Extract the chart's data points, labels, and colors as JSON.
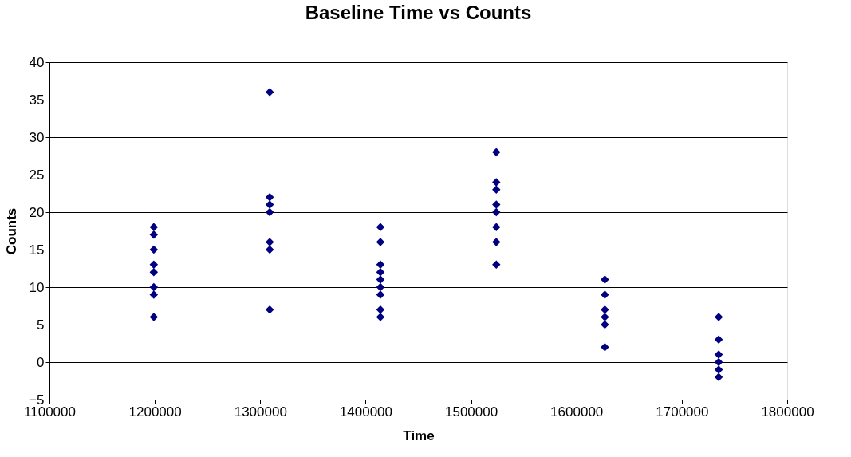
{
  "chart_data": {
    "type": "scatter",
    "title": "Baseline Time vs Counts",
    "xlabel": "Time",
    "ylabel": "Counts",
    "x": [
      1199000,
      1199000,
      1199000,
      1199000,
      1199000,
      1199000,
      1199000,
      1199000,
      1309000,
      1309000,
      1309000,
      1309000,
      1309000,
      1309000,
      1309000,
      1414000,
      1414000,
      1414000,
      1414000,
      1414000,
      1414000,
      1414000,
      1414000,
      1414000,
      1524000,
      1524000,
      1524000,
      1524000,
      1524000,
      1524000,
      1524000,
      1524000,
      1627000,
      1627000,
      1627000,
      1627000,
      1627000,
      1627000,
      1735000,
      1735000,
      1735000,
      1735000,
      1735000,
      1735000
    ],
    "series": [
      {
        "color": "#000080",
        "values": [
          18,
          17,
          15,
          13,
          12,
          10,
          9,
          6,
          36,
          22,
          21,
          20,
          16,
          15,
          7,
          18,
          16,
          13,
          12,
          11,
          10,
          9,
          7,
          6,
          28,
          24,
          23,
          21,
          20,
          18,
          16,
          13,
          11,
          9,
          7,
          6,
          5,
          2,
          6,
          3,
          1,
          0,
          -1,
          -2
        ]
      }
    ],
    "xlim": [
      1100000,
      1800000
    ],
    "xticks": [
      1100000,
      1200000,
      1300000,
      1400000,
      1500000,
      1600000,
      1700000,
      1800000
    ],
    "ylim": [
      -5,
      40
    ],
    "yticks": [
      -5,
      0,
      5,
      10,
      15,
      20,
      25,
      30,
      35,
      40
    ],
    "grid": "y",
    "marker": "diamond"
  }
}
